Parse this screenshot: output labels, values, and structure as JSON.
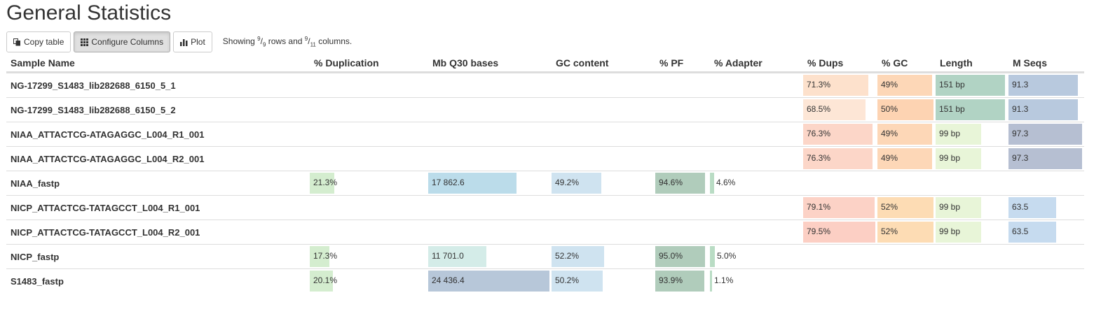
{
  "page": {
    "title": "General Statistics"
  },
  "toolbar": {
    "copy_label": "Copy table",
    "configure_label": "Configure Columns",
    "plot_label": "Plot",
    "showing_prefix": "Showing ",
    "rows_shown": "9",
    "rows_total": "9",
    "rows_word": " rows and ",
    "cols_shown": "9",
    "cols_total": "11",
    "cols_word": " columns."
  },
  "table": {
    "columns": [
      {
        "key": "name",
        "label": "Sample Name"
      },
      {
        "key": "dup",
        "label": "% Duplication",
        "color": "#d4edcf"
      },
      {
        "key": "q30",
        "label": "Mb Q30 bases"
      },
      {
        "key": "gc",
        "label": "GC content",
        "color": "#cfe3f0"
      },
      {
        "key": "pf",
        "label": "% PF",
        "color": "#b0ccbb"
      },
      {
        "key": "adapter",
        "label": "% Adapter",
        "color": "#b9dcc4"
      },
      {
        "key": "dups",
        "label": "% Dups"
      },
      {
        "key": "pgc",
        "label": "% GC"
      },
      {
        "key": "length",
        "label": "Length"
      },
      {
        "key": "mseqs",
        "label": "M Seqs"
      }
    ],
    "rows": [
      {
        "name": "NG-17299_S1483_lib282688_6150_5_1",
        "dups": {
          "text": "71.3%",
          "frac": 0.9,
          "color": "#fde1cc"
        },
        "pgc": {
          "text": "49%",
          "frac": 0.98,
          "color": "#fdd7b7"
        },
        "length": {
          "text": "151 bp",
          "frac": 0.98,
          "color": "#b1d3c4"
        },
        "mseqs": {
          "text": "91.3",
          "frac": 0.94,
          "color": "#b8c9de"
        }
      },
      {
        "name": "NG-17299_S1483_lib282688_6150_5_2",
        "dups": {
          "text": "68.5%",
          "frac": 0.86,
          "color": "#fde6d6"
        },
        "pgc": {
          "text": "50%",
          "frac": 1.0,
          "color": "#fdd3b2"
        },
        "length": {
          "text": "151 bp",
          "frac": 0.98,
          "color": "#b1d3c4"
        },
        "mseqs": {
          "text": "91.3",
          "frac": 0.94,
          "color": "#b8c9de"
        }
      },
      {
        "name": "NIAA_ATTACTCG-ATAGAGGC_L004_R1_001",
        "dups": {
          "text": "76.3%",
          "frac": 0.96,
          "color": "#fcd6c8"
        },
        "pgc": {
          "text": "49%",
          "frac": 0.98,
          "color": "#fdd7b7"
        },
        "length": {
          "text": "99 bp",
          "frac": 0.64,
          "color": "#e8f5d8"
        },
        "mseqs": {
          "text": "97.3",
          "frac": 1.0,
          "color": "#b6bfd2"
        }
      },
      {
        "name": "NIAA_ATTACTCG-ATAGAGGC_L004_R2_001",
        "dups": {
          "text": "76.3%",
          "frac": 0.96,
          "color": "#fcd6c8"
        },
        "pgc": {
          "text": "49%",
          "frac": 0.98,
          "color": "#fdd7b7"
        },
        "length": {
          "text": "99 bp",
          "frac": 0.64,
          "color": "#e8f5d8"
        },
        "mseqs": {
          "text": "97.3",
          "frac": 1.0,
          "color": "#b6bfd2"
        }
      },
      {
        "name": "NIAA_fastp",
        "dup": {
          "text": "21.3%",
          "frac": 0.21,
          "color": "#d4edcf"
        },
        "q30": {
          "text": "17 862.6",
          "frac": 0.73,
          "color": "#bbdcea"
        },
        "gc": {
          "text": "49.2%",
          "frac": 0.49,
          "color": "#cfe3f0"
        },
        "pf": {
          "text": "94.6%",
          "frac": 0.946,
          "color": "#b0ccbb"
        },
        "adapter": {
          "text": "4.6%",
          "frac": 0.046,
          "color": "#b9dcc4"
        }
      },
      {
        "name": "NICP_ATTACTCG-TATAGCCT_L004_R1_001",
        "dups": {
          "text": "79.1%",
          "frac": 0.995,
          "color": "#fcd2c6"
        },
        "pgc": {
          "text": "52%",
          "frac": 1.0,
          "color": "#fddcb4"
        },
        "length": {
          "text": "99 bp",
          "frac": 0.64,
          "color": "#e8f5d8"
        },
        "mseqs": {
          "text": "63.5",
          "frac": 0.65,
          "color": "#c6dbef"
        }
      },
      {
        "name": "NICP_ATTACTCG-TATAGCCT_L004_R2_001",
        "dups": {
          "text": "79.5%",
          "frac": 1.0,
          "color": "#fccfc4"
        },
        "pgc": {
          "text": "52%",
          "frac": 1.0,
          "color": "#fddcb4"
        },
        "length": {
          "text": "99 bp",
          "frac": 0.64,
          "color": "#e8f5d8"
        },
        "mseqs": {
          "text": "63.5",
          "frac": 0.65,
          "color": "#c6dbef"
        }
      },
      {
        "name": "NICP_fastp",
        "dup": {
          "text": "17.3%",
          "frac": 0.17,
          "color": "#d4edcf"
        },
        "q30": {
          "text": "11 701.0",
          "frac": 0.48,
          "color": "#d4ece8"
        },
        "gc": {
          "text": "52.2%",
          "frac": 0.52,
          "color": "#cfe3f0"
        },
        "pf": {
          "text": "95.0%",
          "frac": 0.95,
          "color": "#b0ccbb"
        },
        "adapter": {
          "text": "5.0%",
          "frac": 0.05,
          "color": "#b9dcc4"
        }
      },
      {
        "name": "S1483_fastp",
        "dup": {
          "text": "20.1%",
          "frac": 0.2,
          "color": "#d4edcf"
        },
        "q30": {
          "text": "24 436.4",
          "frac": 1.0,
          "color": "#b7c7d9"
        },
        "gc": {
          "text": "50.2%",
          "frac": 0.5,
          "color": "#cfe3f0"
        },
        "pf": {
          "text": "93.9%",
          "frac": 0.939,
          "color": "#b0ccbb"
        },
        "adapter": {
          "text": "1.1%",
          "frac": 0.011,
          "color": "#b9dcc4"
        }
      }
    ]
  }
}
